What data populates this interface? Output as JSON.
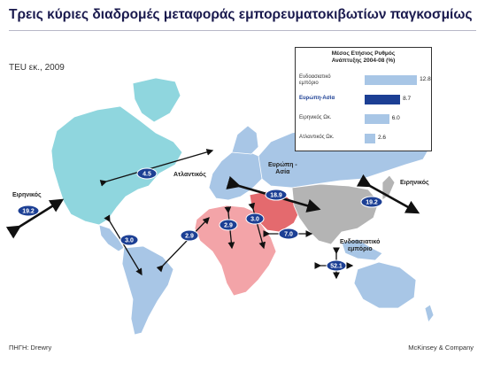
{
  "title": "Τρεις κύριες διαδρομές μεταφοράς εμπορευματοκιβωτίων παγκοσμίως",
  "subtitle": "TEU εκ., 2009",
  "source": "ΠΗΓΗ: Drewry",
  "publisher": "McKinsey & Company",
  "map_labels": {
    "atlantic": "Ατλαντικός",
    "europe_asia": [
      "Ευρώπη -",
      "Ασία"
    ],
    "pacific_left": "Ειρηνικός",
    "pacific_right": "Ειρηνικός",
    "intra_asia": [
      "Ενδοασιατικό",
      "εμπόριο"
    ]
  },
  "route_values": {
    "atlantic": "4.5",
    "pacific_left": "19.2",
    "pacific_right": "19.2",
    "europe_asia": "18.9",
    "americas": "3.0",
    "atlantic_south": "2.9",
    "europe_africa": "2.9",
    "middle_east": "3.0",
    "asia_middle_east": "7.0",
    "intra_asia": "52.1"
  },
  "chart_data": {
    "type": "bar",
    "title": [
      "Μέσος Ετήσιος Ρυθμός",
      "Ανάπτυξης 2004-08 (%)"
    ],
    "categories": [
      [
        "Ενδοασιατικό",
        "εμπόριο"
      ],
      [
        "Ευρώπη-Ασία"
      ],
      [
        "Ειρηνικός Ωκ."
      ],
      [
        "Ατλαντικός Ωκ."
      ]
    ],
    "values": [
      "12.8",
      "8.7",
      "6.0",
      "2.6"
    ],
    "highlight_index": 1,
    "xlim": [
      0,
      13
    ]
  },
  "colors": {
    "north_america": "#8fd6de",
    "south_america": "#a8c6e6",
    "europe": "#a8c6e6",
    "russia": "#a8c6e6",
    "africa": "#f3a4a8",
    "middle_east": "#e46a6e",
    "asia": "#b4b4b4",
    "oceania": "#a8c6e6",
    "badge": "#1c3f94",
    "bar": "#a8c6e6",
    "bar_highlight": "#1c3f94"
  }
}
